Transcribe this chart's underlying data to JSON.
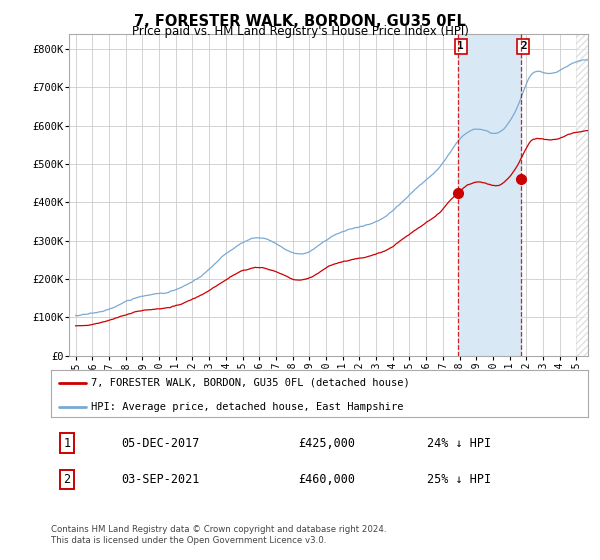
{
  "title": "7, FORESTER WALK, BORDON, GU35 0FL",
  "subtitle": "Price paid vs. HM Land Registry's House Price Index (HPI)",
  "ylabel_ticks": [
    "£0",
    "£100K",
    "£200K",
    "£300K",
    "£400K",
    "£500K",
    "£600K",
    "£700K",
    "£800K"
  ],
  "ytick_values": [
    0,
    100000,
    200000,
    300000,
    400000,
    500000,
    600000,
    700000,
    800000
  ],
  "ylim": [
    0,
    840000
  ],
  "hpi_color": "#7aaad4",
  "price_color": "#cc0000",
  "shade_color": "#d8e8f5",
  "hatch_color": "#cccccc",
  "vline_color": "#cc0000",
  "purchase1_year": 2017.92,
  "purchase2_year": 2021.67,
  "purchase1_price": 425000,
  "purchase2_price": 460000,
  "future_start": 2025.0,
  "xlim_left": 1994.6,
  "xlim_right": 2025.7,
  "legend_label1": "7, FORESTER WALK, BORDON, GU35 0FL (detached house)",
  "legend_label2": "HPI: Average price, detached house, East Hampshire",
  "table_row1": [
    "1",
    "05-DEC-2017",
    "£425,000",
    "24% ↓ HPI"
  ],
  "table_row2": [
    "2",
    "03-SEP-2021",
    "£460,000",
    "25% ↓ HPI"
  ],
  "footer": "Contains HM Land Registry data © Crown copyright and database right 2024.\nThis data is licensed under the Open Government Licence v3.0.",
  "bg": "#ffffff",
  "grid_color": "#cccccc"
}
